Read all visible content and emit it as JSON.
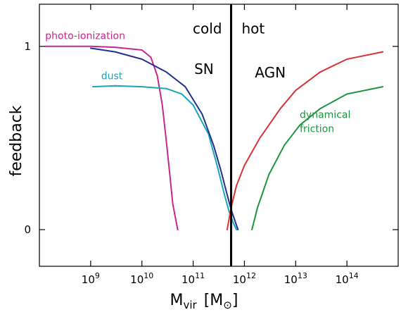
{
  "chart_data": {
    "type": "line",
    "title": "",
    "xlabel": "M_vir [M_⊙]",
    "ylabel": "feedback",
    "xscale": "log",
    "xlim": [
      100000000.0,
      1000000000000000.0
    ],
    "ylim": [
      -0.2,
      1.23
    ],
    "x_ticks": [
      {
        "exp": "9",
        "value": 1000000000.0
      },
      {
        "exp": "10",
        "value": 10000000000.0
      },
      {
        "exp": "11",
        "value": 100000000000.0
      },
      {
        "exp": "12",
        "value": 1000000000000.0
      },
      {
        "exp": "13",
        "value": 10000000000000.0
      },
      {
        "exp": "14",
        "value": 100000000000000.0
      }
    ],
    "y_ticks": [
      {
        "label": "0",
        "value": 0
      },
      {
        "label": "1",
        "value": 1
      }
    ],
    "x_axis_label": {
      "main": "M",
      "sub": "vir",
      "bracket_open": "[M",
      "sub2": "⊙",
      "bracket_close": "]"
    },
    "divider": {
      "x": 550000000000.0,
      "left_label": "cold",
      "right_label": "hot"
    },
    "series": [
      {
        "name": "photo-ionization",
        "color": "#c8268c",
        "x": [
          130000000.0,
          300000000.0,
          1000000000.0,
          3000000000.0,
          10000000000.0,
          15000000000.0,
          20000000000.0,
          25000000000.0,
          30000000000.0,
          35000000000.0,
          40000000000.0,
          50000000000.0
        ],
        "y": [
          1.0,
          1.0,
          1.0,
          0.995,
          0.98,
          0.94,
          0.84,
          0.68,
          0.48,
          0.3,
          0.14,
          0.0
        ]
      },
      {
        "name": "dust",
        "color": "#1aa6b8",
        "x": [
          1100000000.0,
          3000000000.0,
          10000000000.0,
          30000000000.0,
          60000000000.0,
          100000000000.0,
          200000000000.0,
          300000000000.0,
          400000000000.0,
          500000000000.0,
          600000000000.0,
          700000000000.0
        ],
        "y": [
          0.78,
          0.785,
          0.78,
          0.77,
          0.74,
          0.68,
          0.52,
          0.34,
          0.2,
          0.1,
          0.04,
          0.0
        ]
      },
      {
        "name": "SN",
        "color": "#23308f",
        "x": [
          1000000000.0,
          3000000000.0,
          10000000000.0,
          30000000000.0,
          70000000000.0,
          150000000000.0,
          250000000000.0,
          350000000000.0,
          450000000000.0,
          550000000000.0,
          650000000000.0,
          750000000000.0
        ],
        "y": [
          0.99,
          0.97,
          0.93,
          0.86,
          0.78,
          0.63,
          0.46,
          0.32,
          0.2,
          0.11,
          0.05,
          0.0
        ]
      },
      {
        "name": "AGN",
        "color": "#d83234",
        "x": [
          460000000000.0,
          550000000000.0,
          700000000000.0,
          1000000000000.0,
          2000000000000.0,
          5000000000000.0,
          10000000000000.0,
          30000000000000.0,
          100000000000000.0,
          500000000000000.0
        ],
        "y": [
          0.0,
          0.12,
          0.24,
          0.35,
          0.5,
          0.66,
          0.76,
          0.86,
          0.93,
          0.97
        ]
      },
      {
        "name": "dynamical friction",
        "color": "#1e9440",
        "x": [
          1400000000000.0,
          1800000000000.0,
          3000000000000.0,
          6000000000000.0,
          12000000000000.0,
          30000000000000.0,
          100000000000000.0,
          500000000000000.0
        ],
        "y": [
          0.0,
          0.12,
          0.3,
          0.46,
          0.57,
          0.66,
          0.74,
          0.78
        ]
      }
    ],
    "series_labels": [
      {
        "lines": [
          "photo-ionization"
        ],
        "color": "#c8268c",
        "at": [
          130000000.0,
          1.04
        ]
      },
      {
        "lines": [
          "dust"
        ],
        "color": "#1aa6b8",
        "at": [
          1600000000.0,
          0.82
        ]
      },
      {
        "lines": [
          "SN"
        ],
        "color": "#23308f",
        "at": [
          105000000000.0,
          0.85
        ],
        "big": true
      },
      {
        "lines": [
          "AGN"
        ],
        "color": "#d83234",
        "at": [
          1600000000000.0,
          0.83
        ],
        "big": true
      },
      {
        "lines": [
          "dynamical",
          "friction"
        ],
        "color": "#1e9440",
        "at": [
          12000000000000.0,
          0.61
        ]
      }
    ],
    "grid": false,
    "legend": "none"
  }
}
